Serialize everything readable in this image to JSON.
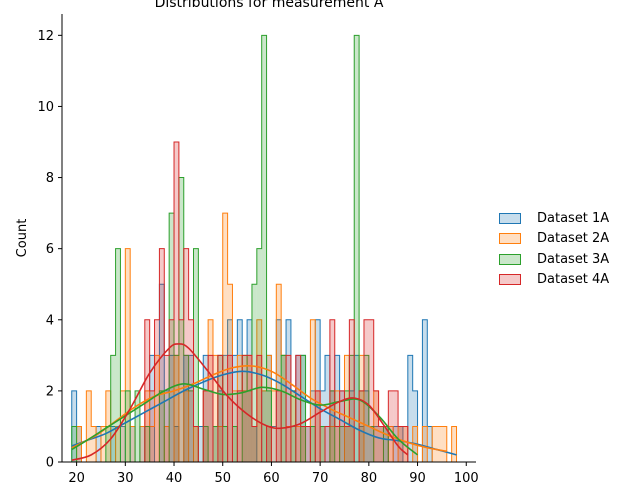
{
  "chart_data": {
    "type": "histogram",
    "title": "Distributions for measurement A",
    "xlabel": "",
    "ylabel": "Count",
    "xlim": [
      17,
      102
    ],
    "ylim": [
      0,
      12.6
    ],
    "x_ticks": [
      "20",
      "30",
      "40",
      "50",
      "60",
      "70",
      "80",
      "90",
      "100"
    ],
    "y_ticks": [
      "0",
      "2",
      "4",
      "6",
      "8",
      "10",
      "12"
    ],
    "bin_width": 1,
    "grid": false,
    "legend_position": "right",
    "series": [
      {
        "name": "Dataset 1A",
        "color": "#1f77b4",
        "bins": [
          [
            19,
            2
          ],
          [
            20,
            1
          ],
          [
            24,
            1
          ],
          [
            27,
            1
          ],
          [
            29,
            1
          ],
          [
            31,
            1
          ],
          [
            33,
            1
          ],
          [
            35,
            3
          ],
          [
            37,
            5
          ],
          [
            38,
            2
          ],
          [
            39,
            3
          ],
          [
            40,
            1
          ],
          [
            42,
            3
          ],
          [
            43,
            3
          ],
          [
            45,
            1
          ],
          [
            46,
            3
          ],
          [
            47,
            2
          ],
          [
            48,
            1
          ],
          [
            49,
            2
          ],
          [
            50,
            3
          ],
          [
            51,
            4
          ],
          [
            52,
            3
          ],
          [
            53,
            4
          ],
          [
            54,
            2
          ],
          [
            55,
            4
          ],
          [
            56,
            1
          ],
          [
            58,
            2
          ],
          [
            59,
            3
          ],
          [
            60,
            1
          ],
          [
            61,
            4
          ],
          [
            62,
            3
          ],
          [
            63,
            4
          ],
          [
            64,
            1
          ],
          [
            65,
            3
          ],
          [
            66,
            3
          ],
          [
            67,
            1
          ],
          [
            68,
            2
          ],
          [
            69,
            4
          ],
          [
            70,
            2
          ],
          [
            71,
            3
          ],
          [
            72,
            2
          ],
          [
            73,
            3
          ],
          [
            74,
            2
          ],
          [
            75,
            1
          ],
          [
            76,
            2
          ],
          [
            77,
            3
          ],
          [
            78,
            1
          ],
          [
            79,
            2
          ],
          [
            80,
            1
          ],
          [
            81,
            1
          ],
          [
            82,
            1
          ],
          [
            83,
            1
          ],
          [
            85,
            1
          ],
          [
            86,
            1
          ],
          [
            88,
            3
          ],
          [
            89,
            2
          ],
          [
            91,
            4
          ],
          [
            92,
            1
          ]
        ],
        "kde": [
          [
            19,
            0.45
          ],
          [
            22,
            0.6
          ],
          [
            26,
            0.8
          ],
          [
            30,
            1.1
          ],
          [
            34,
            1.4
          ],
          [
            38,
            1.7
          ],
          [
            42,
            2.0
          ],
          [
            46,
            2.25
          ],
          [
            50,
            2.45
          ],
          [
            54,
            2.55
          ],
          [
            58,
            2.45
          ],
          [
            62,
            2.2
          ],
          [
            66,
            1.85
          ],
          [
            70,
            1.5
          ],
          [
            74,
            1.2
          ],
          [
            78,
            0.9
          ],
          [
            82,
            0.68
          ],
          [
            86,
            0.6
          ],
          [
            90,
            0.5
          ],
          [
            94,
            0.35
          ],
          [
            98,
            0.2
          ]
        ]
      },
      {
        "name": "Dataset 2A",
        "color": "#ff7f0e",
        "bins": [
          [
            20,
            1
          ],
          [
            22,
            2
          ],
          [
            23,
            1
          ],
          [
            25,
            1
          ],
          [
            26,
            2
          ],
          [
            28,
            1
          ],
          [
            29,
            2
          ],
          [
            30,
            6
          ],
          [
            31,
            1
          ],
          [
            33,
            1
          ],
          [
            34,
            2
          ],
          [
            35,
            1
          ],
          [
            36,
            3
          ],
          [
            38,
            1
          ],
          [
            40,
            3
          ],
          [
            42,
            2
          ],
          [
            44,
            1
          ],
          [
            46,
            2
          ],
          [
            47,
            4
          ],
          [
            48,
            3
          ],
          [
            49,
            1
          ],
          [
            50,
            7
          ],
          [
            51,
            5
          ],
          [
            52,
            2
          ],
          [
            53,
            3
          ],
          [
            54,
            2
          ],
          [
            55,
            3
          ],
          [
            56,
            1
          ],
          [
            57,
            4
          ],
          [
            58,
            2
          ],
          [
            59,
            3
          ],
          [
            60,
            2
          ],
          [
            61,
            5
          ],
          [
            62,
            3
          ],
          [
            63,
            1
          ],
          [
            64,
            2
          ],
          [
            65,
            1
          ],
          [
            66,
            1
          ],
          [
            68,
            4
          ],
          [
            69,
            2
          ],
          [
            70,
            1
          ],
          [
            72,
            1
          ],
          [
            73,
            2
          ],
          [
            75,
            3
          ],
          [
            76,
            1
          ],
          [
            78,
            3
          ],
          [
            81,
            2
          ],
          [
            82,
            1
          ],
          [
            84,
            1
          ],
          [
            86,
            1
          ],
          [
            87,
            1
          ],
          [
            89,
            1
          ],
          [
            91,
            1
          ],
          [
            93,
            1
          ],
          [
            94,
            1
          ],
          [
            95,
            1
          ],
          [
            97,
            1
          ]
        ],
        "kde": [
          [
            19,
            0.4
          ],
          [
            24,
            0.75
          ],
          [
            28,
            1.15
          ],
          [
            32,
            1.55
          ],
          [
            36,
            1.85
          ],
          [
            40,
            2.0
          ],
          [
            44,
            2.2
          ],
          [
            48,
            2.45
          ],
          [
            52,
            2.65
          ],
          [
            56,
            2.7
          ],
          [
            60,
            2.55
          ],
          [
            64,
            2.2
          ],
          [
            68,
            1.8
          ],
          [
            72,
            1.5
          ],
          [
            76,
            1.25
          ],
          [
            80,
            1.0
          ],
          [
            84,
            0.75
          ],
          [
            88,
            0.55
          ],
          [
            92,
            0.4
          ],
          [
            96,
            0.3
          ]
        ]
      },
      {
        "name": "Dataset 3A",
        "color": "#2ca02c",
        "bins": [
          [
            19,
            1
          ],
          [
            26,
            1
          ],
          [
            27,
            3
          ],
          [
            28,
            6
          ],
          [
            30,
            2
          ],
          [
            32,
            2
          ],
          [
            34,
            1
          ],
          [
            37,
            2
          ],
          [
            39,
            7
          ],
          [
            40,
            3
          ],
          [
            41,
            8
          ],
          [
            42,
            3
          ],
          [
            43,
            2
          ],
          [
            44,
            6
          ],
          [
            46,
            1
          ],
          [
            48,
            1
          ],
          [
            49,
            3
          ],
          [
            50,
            1
          ],
          [
            52,
            1
          ],
          [
            54,
            3
          ],
          [
            55,
            2
          ],
          [
            56,
            5
          ],
          [
            57,
            6
          ],
          [
            58,
            12
          ],
          [
            59,
            2
          ],
          [
            62,
            3
          ],
          [
            64,
            2
          ],
          [
            66,
            3
          ],
          [
            68,
            1
          ],
          [
            70,
            1
          ],
          [
            72,
            2
          ],
          [
            74,
            1
          ],
          [
            75,
            2
          ],
          [
            76,
            3
          ],
          [
            77,
            12
          ],
          [
            78,
            2
          ],
          [
            79,
            3
          ],
          [
            80,
            1
          ],
          [
            83,
            1
          ]
        ],
        "kde": [
          [
            19,
            0.35
          ],
          [
            22,
            0.6
          ],
          [
            26,
            0.95
          ],
          [
            30,
            1.3
          ],
          [
            34,
            1.65
          ],
          [
            38,
            2.0
          ],
          [
            42,
            2.2
          ],
          [
            46,
            2.05
          ],
          [
            50,
            1.9
          ],
          [
            54,
            1.95
          ],
          [
            58,
            2.1
          ],
          [
            62,
            2.0
          ],
          [
            66,
            1.75
          ],
          [
            70,
            1.6
          ],
          [
            74,
            1.7
          ],
          [
            78,
            1.75
          ],
          [
            82,
            1.3
          ],
          [
            86,
            0.65
          ],
          [
            90,
            0.2
          ]
        ]
      },
      {
        "name": "Dataset 4A",
        "color": "#d62728",
        "bins": [
          [
            34,
            4
          ],
          [
            35,
            2
          ],
          [
            36,
            4
          ],
          [
            37,
            6
          ],
          [
            38,
            3
          ],
          [
            39,
            4
          ],
          [
            40,
            9
          ],
          [
            41,
            4
          ],
          [
            42,
            6
          ],
          [
            43,
            4
          ],
          [
            44,
            1
          ],
          [
            46,
            2
          ],
          [
            47,
            3
          ],
          [
            49,
            3
          ],
          [
            51,
            3
          ],
          [
            53,
            2
          ],
          [
            54,
            3
          ],
          [
            55,
            3
          ],
          [
            56,
            1
          ],
          [
            57,
            3
          ],
          [
            59,
            1
          ],
          [
            61,
            2
          ],
          [
            63,
            3
          ],
          [
            65,
            3
          ],
          [
            66,
            1
          ],
          [
            67,
            1
          ],
          [
            69,
            2
          ],
          [
            71,
            1
          ],
          [
            72,
            4
          ],
          [
            73,
            1
          ],
          [
            74,
            2
          ],
          [
            75,
            1
          ],
          [
            76,
            4
          ],
          [
            78,
            2
          ],
          [
            79,
            4
          ],
          [
            80,
            4
          ],
          [
            81,
            2
          ],
          [
            82,
            1
          ],
          [
            83,
            1
          ],
          [
            84,
            2
          ],
          [
            85,
            2
          ],
          [
            86,
            1
          ],
          [
            87,
            1
          ]
        ],
        "kde": [
          [
            19,
            0.05
          ],
          [
            23,
            0.2
          ],
          [
            27,
            0.65
          ],
          [
            31,
            1.5
          ],
          [
            35,
            2.5
          ],
          [
            39,
            3.2
          ],
          [
            41,
            3.32
          ],
          [
            43,
            3.2
          ],
          [
            47,
            2.55
          ],
          [
            51,
            1.85
          ],
          [
            55,
            1.35
          ],
          [
            59,
            1.02
          ],
          [
            62,
            0.95
          ],
          [
            66,
            1.08
          ],
          [
            70,
            1.4
          ],
          [
            74,
            1.7
          ],
          [
            77,
            1.8
          ],
          [
            80,
            1.6
          ],
          [
            83,
            1.05
          ],
          [
            86,
            0.45
          ],
          [
            88,
            0.2
          ]
        ]
      }
    ]
  }
}
